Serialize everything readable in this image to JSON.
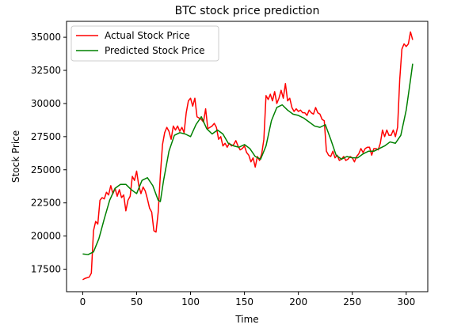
{
  "chart_data": {
    "type": "line",
    "title": "BTC stock price prediction",
    "xlabel": "Time",
    "ylabel": "Stock Price",
    "xlim": [
      -15,
      320
    ],
    "ylim": [
      15800,
      36200
    ],
    "xticks": [
      0,
      50,
      100,
      150,
      200,
      250,
      300
    ],
    "yticks": [
      17500,
      20000,
      22500,
      25000,
      27500,
      30000,
      32500,
      35000
    ],
    "xtick_labels": [
      "0",
      "50",
      "100",
      "150",
      "200",
      "250",
      "300"
    ],
    "ytick_labels": [
      "17500",
      "20000",
      "22500",
      "25000",
      "27500",
      "30000",
      "32500",
      "35000"
    ],
    "legend_position": "top-left",
    "grid": false,
    "series": [
      {
        "name": "Actual Stock Price",
        "color": "#ff0000",
        "points": [
          [
            0,
            16700
          ],
          [
            2,
            16800
          ],
          [
            4,
            16850
          ],
          [
            6,
            16900
          ],
          [
            8,
            17200
          ],
          [
            10,
            20400
          ],
          [
            12,
            21100
          ],
          [
            14,
            20900
          ],
          [
            16,
            22700
          ],
          [
            18,
            22900
          ],
          [
            20,
            22800
          ],
          [
            22,
            23300
          ],
          [
            24,
            23100
          ],
          [
            26,
            23800
          ],
          [
            28,
            23200
          ],
          [
            30,
            23600
          ],
          [
            32,
            23000
          ],
          [
            34,
            23500
          ],
          [
            36,
            22900
          ],
          [
            38,
            23100
          ],
          [
            40,
            21900
          ],
          [
            42,
            22700
          ],
          [
            44,
            23000
          ],
          [
            46,
            24500
          ],
          [
            48,
            24200
          ],
          [
            50,
            24900
          ],
          [
            52,
            23800
          ],
          [
            54,
            23200
          ],
          [
            56,
            23700
          ],
          [
            58,
            23400
          ],
          [
            60,
            22800
          ],
          [
            62,
            22100
          ],
          [
            64,
            21800
          ],
          [
            66,
            20400
          ],
          [
            68,
            20300
          ],
          [
            70,
            21800
          ],
          [
            72,
            24600
          ],
          [
            74,
            26900
          ],
          [
            76,
            27800
          ],
          [
            78,
            28200
          ],
          [
            80,
            27900
          ],
          [
            82,
            27300
          ],
          [
            84,
            28300
          ],
          [
            86,
            28000
          ],
          [
            88,
            28300
          ],
          [
            90,
            27900
          ],
          [
            92,
            28200
          ],
          [
            94,
            27800
          ],
          [
            96,
            29300
          ],
          [
            98,
            30200
          ],
          [
            100,
            30400
          ],
          [
            102,
            29800
          ],
          [
            104,
            30400
          ],
          [
            106,
            29000
          ],
          [
            108,
            28900
          ],
          [
            110,
            28800
          ],
          [
            112,
            28600
          ],
          [
            114,
            29600
          ],
          [
            116,
            28100
          ],
          [
            118,
            28200
          ],
          [
            120,
            28300
          ],
          [
            122,
            28500
          ],
          [
            124,
            28200
          ],
          [
            126,
            27300
          ],
          [
            128,
            27500
          ],
          [
            130,
            26800
          ],
          [
            132,
            27000
          ],
          [
            134,
            26700
          ],
          [
            136,
            27000
          ],
          [
            138,
            26800
          ],
          [
            140,
            26900
          ],
          [
            142,
            27200
          ],
          [
            144,
            26800
          ],
          [
            146,
            26500
          ],
          [
            148,
            26600
          ],
          [
            150,
            26800
          ],
          [
            152,
            26300
          ],
          [
            154,
            26100
          ],
          [
            156,
            25600
          ],
          [
            158,
            25900
          ],
          [
            160,
            25200
          ],
          [
            162,
            26000
          ],
          [
            164,
            25700
          ],
          [
            166,
            26200
          ],
          [
            168,
            27300
          ],
          [
            170,
            30600
          ],
          [
            172,
            30300
          ],
          [
            174,
            30700
          ],
          [
            176,
            30200
          ],
          [
            178,
            30900
          ],
          [
            180,
            30000
          ],
          [
            182,
            30400
          ],
          [
            184,
            31000
          ],
          [
            186,
            30400
          ],
          [
            188,
            31500
          ],
          [
            190,
            30200
          ],
          [
            192,
            30400
          ],
          [
            194,
            29700
          ],
          [
            196,
            29400
          ],
          [
            198,
            29600
          ],
          [
            200,
            29400
          ],
          [
            202,
            29500
          ],
          [
            204,
            29300
          ],
          [
            206,
            29300
          ],
          [
            208,
            29100
          ],
          [
            210,
            29500
          ],
          [
            212,
            29300
          ],
          [
            214,
            29200
          ],
          [
            216,
            29700
          ],
          [
            218,
            29300
          ],
          [
            220,
            29200
          ],
          [
            222,
            28800
          ],
          [
            224,
            28700
          ],
          [
            226,
            26400
          ],
          [
            228,
            26100
          ],
          [
            230,
            26000
          ],
          [
            232,
            26400
          ],
          [
            234,
            25900
          ],
          [
            236,
            26100
          ],
          [
            238,
            25700
          ],
          [
            240,
            25800
          ],
          [
            242,
            26000
          ],
          [
            244,
            25700
          ],
          [
            246,
            25800
          ],
          [
            248,
            26000
          ],
          [
            250,
            25900
          ],
          [
            252,
            25600
          ],
          [
            254,
            26000
          ],
          [
            256,
            26200
          ],
          [
            258,
            26600
          ],
          [
            260,
            26300
          ],
          [
            262,
            26600
          ],
          [
            264,
            26700
          ],
          [
            266,
            26700
          ],
          [
            268,
            26100
          ],
          [
            270,
            26600
          ],
          [
            272,
            26600
          ],
          [
            274,
            26500
          ],
          [
            276,
            27000
          ],
          [
            278,
            28000
          ],
          [
            280,
            27500
          ],
          [
            282,
            28000
          ],
          [
            284,
            27600
          ],
          [
            286,
            27600
          ],
          [
            288,
            28000
          ],
          [
            290,
            27500
          ],
          [
            292,
            28200
          ],
          [
            294,
            31800
          ],
          [
            296,
            34100
          ],
          [
            298,
            34500
          ],
          [
            300,
            34300
          ],
          [
            302,
            34500
          ],
          [
            304,
            35400
          ],
          [
            306,
            34800
          ]
        ]
      },
      {
        "name": "Predicted Stock Price",
        "color": "#008000",
        "points": [
          [
            0,
            18650
          ],
          [
            5,
            18600
          ],
          [
            10,
            18800
          ],
          [
            15,
            19800
          ],
          [
            20,
            21300
          ],
          [
            25,
            22700
          ],
          [
            30,
            23600
          ],
          [
            35,
            23900
          ],
          [
            40,
            23900
          ],
          [
            45,
            23500
          ],
          [
            50,
            23200
          ],
          [
            55,
            24200
          ],
          [
            60,
            24400
          ],
          [
            65,
            23800
          ],
          [
            70,
            22700
          ],
          [
            72,
            22600
          ],
          [
            75,
            24200
          ],
          [
            80,
            26400
          ],
          [
            85,
            27600
          ],
          [
            90,
            27800
          ],
          [
            95,
            27700
          ],
          [
            100,
            27500
          ],
          [
            105,
            28400
          ],
          [
            110,
            29000
          ],
          [
            115,
            28100
          ],
          [
            120,
            27700
          ],
          [
            125,
            28000
          ],
          [
            130,
            27700
          ],
          [
            135,
            27000
          ],
          [
            140,
            26800
          ],
          [
            145,
            26700
          ],
          [
            150,
            26900
          ],
          [
            155,
            26600
          ],
          [
            160,
            26000
          ],
          [
            165,
            25800
          ],
          [
            170,
            26800
          ],
          [
            175,
            28700
          ],
          [
            180,
            29700
          ],
          [
            185,
            29900
          ],
          [
            190,
            29500
          ],
          [
            195,
            29200
          ],
          [
            200,
            29100
          ],
          [
            205,
            28900
          ],
          [
            210,
            28600
          ],
          [
            215,
            28300
          ],
          [
            220,
            28200
          ],
          [
            225,
            28400
          ],
          [
            230,
            27300
          ],
          [
            235,
            26100
          ],
          [
            240,
            25800
          ],
          [
            245,
            26000
          ],
          [
            250,
            25900
          ],
          [
            255,
            25900
          ],
          [
            260,
            26200
          ],
          [
            265,
            26400
          ],
          [
            270,
            26400
          ],
          [
            275,
            26600
          ],
          [
            280,
            26800
          ],
          [
            285,
            27100
          ],
          [
            290,
            27000
          ],
          [
            295,
            27600
          ],
          [
            300,
            29500
          ],
          [
            304,
            31800
          ],
          [
            306,
            33000
          ]
        ]
      }
    ]
  }
}
